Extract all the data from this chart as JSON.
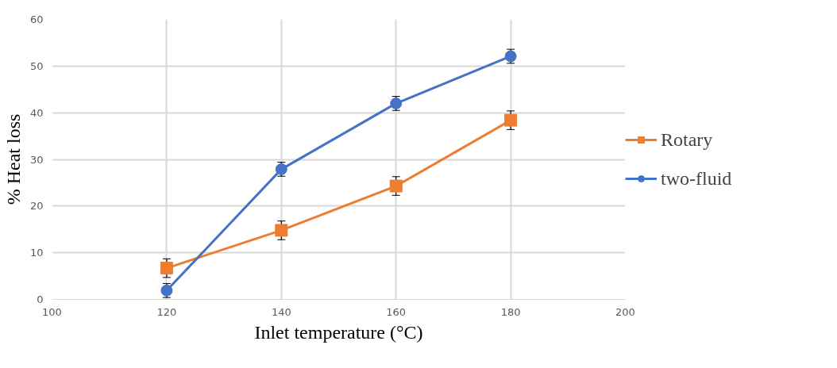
{
  "chart_data": {
    "type": "line",
    "xlabel": "Inlet temperature (°C)",
    "ylabel": "% Heat loss",
    "x": [
      120,
      140,
      160,
      180
    ],
    "series": [
      {
        "name": "Rotary",
        "color": "#ed7d31",
        "marker": "square",
        "values": [
          6.7,
          14.8,
          24.3,
          38.4
        ],
        "errors": [
          2,
          2,
          2,
          2
        ]
      },
      {
        "name": "two-fluid",
        "color": "#4472c4",
        "marker": "circle",
        "values": [
          1.9,
          27.9,
          42.0,
          52.1
        ],
        "errors": [
          1.5,
          1.5,
          1.5,
          1.5
        ]
      }
    ],
    "xlim": [
      100,
      200
    ],
    "xticks": [
      100,
      120,
      140,
      160,
      180,
      200
    ],
    "ylim": [
      0,
      60
    ],
    "yticks": [
      0,
      10,
      20,
      30,
      40,
      50,
      60
    ],
    "grid": true,
    "legend": "right",
    "line_style": "solid"
  }
}
